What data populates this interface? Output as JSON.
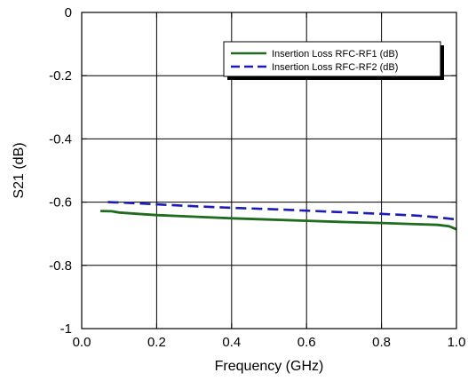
{
  "chart_data": {
    "type": "line",
    "title": "",
    "xlabel": "Frequency (GHz)",
    "ylabel": "S21  (dB)",
    "xlim": [
      0.0,
      1.0
    ],
    "ylim": [
      -1.0,
      0.0
    ],
    "xticks": [
      0.0,
      0.2,
      0.4,
      0.6,
      0.8,
      1.0
    ],
    "xtick_labels": [
      "0.0",
      "0.2",
      "0.4",
      "0.6",
      "0.8",
      "1.0"
    ],
    "yticks": [
      0,
      -0.2,
      -0.4,
      -0.6,
      -0.8,
      -1
    ],
    "ytick_labels": [
      "0",
      "-0.2",
      "-0.4",
      "-0.6",
      "-0.8",
      "-1"
    ],
    "grid": true,
    "legend_position": "top-right",
    "series": [
      {
        "name": "Insertion Loss RFC-RF1 (dB)",
        "color": "#1f6b1f",
        "dash": "solid",
        "x": [
          0.05,
          0.08,
          0.1,
          0.15,
          0.2,
          0.3,
          0.4,
          0.5,
          0.6,
          0.7,
          0.8,
          0.9,
          0.95,
          0.98,
          1.0
        ],
        "y": [
          -0.628,
          -0.629,
          -0.633,
          -0.637,
          -0.641,
          -0.646,
          -0.651,
          -0.655,
          -0.659,
          -0.663,
          -0.666,
          -0.67,
          -0.672,
          -0.676,
          -0.686
        ]
      },
      {
        "name": "Insertion Loss RFC-RF2 (dB)",
        "color": "#1c1cb4",
        "dash": "dashed",
        "x": [
          0.07,
          0.1,
          0.15,
          0.2,
          0.3,
          0.4,
          0.5,
          0.6,
          0.7,
          0.8,
          0.9,
          0.95,
          1.0
        ],
        "y": [
          -0.6,
          -0.601,
          -0.604,
          -0.607,
          -0.613,
          -0.618,
          -0.622,
          -0.627,
          -0.632,
          -0.637,
          -0.643,
          -0.648,
          -0.655
        ]
      }
    ]
  }
}
